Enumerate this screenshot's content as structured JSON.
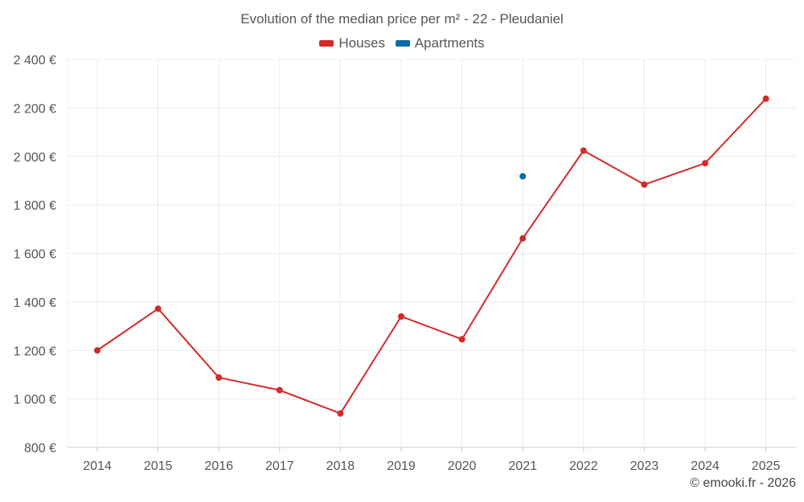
{
  "chart_data": {
    "type": "line",
    "title": "Evolution of the median price per m² - 22 - Pleudaniel",
    "categories": [
      "2014",
      "2015",
      "2016",
      "2017",
      "2018",
      "2019",
      "2020",
      "2021",
      "2022",
      "2023",
      "2024",
      "2025"
    ],
    "y_ticks": [
      "800 €",
      "1 000 €",
      "1 200 €",
      "1 400 €",
      "1 600 €",
      "1 800 €",
      "2 000 €",
      "2 200 €",
      "2 400 €"
    ],
    "y_tick_values": [
      800,
      1000,
      1200,
      1400,
      1600,
      1800,
      2000,
      2200,
      2400
    ],
    "ylim": [
      800,
      2400
    ],
    "grid": true,
    "legend_position": "top-center",
    "series": [
      {
        "name": "Houses",
        "color": "#d32a2a",
        "values": [
          1200,
          1372,
          1088,
          1036,
          940,
          1340,
          1246,
          1662,
          2024,
          1884,
          1972,
          2238
        ]
      },
      {
        "name": "Apartments",
        "color": "#0a6aa1",
        "values": [
          null,
          null,
          null,
          null,
          null,
          null,
          null,
          1918,
          null,
          null,
          null,
          null
        ]
      }
    ]
  },
  "copyright": "© emooki.fr - 2026"
}
